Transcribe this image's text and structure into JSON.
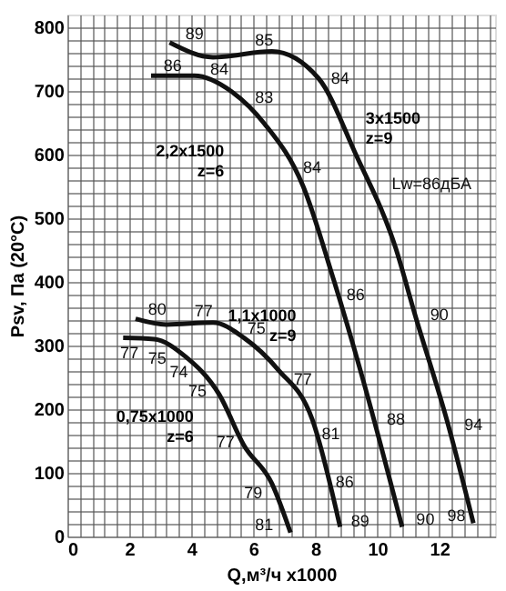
{
  "chart_data": {
    "type": "line",
    "xlabel": "Q,м³/ч x1000",
    "ylabel": "Psv, Па (20°C)",
    "xlim": [
      0,
      13.8
    ],
    "ylim": [
      0,
      820
    ],
    "xticks": [
      0,
      {
        "value": 0.4,
        "label": null
      },
      {
        "value": 0.8,
        "label": null
      },
      {
        "value": 1.2,
        "label": null
      },
      {
        "value": 1.6,
        "label": null
      },
      2,
      {
        "value": 2.4,
        "label": null
      },
      {
        "value": 2.8,
        "label": null
      },
      {
        "value": 3.2,
        "label": null
      },
      {
        "value": 3.6,
        "label": null
      },
      4,
      {
        "value": 4.4,
        "label": null
      },
      {
        "value": 4.8,
        "label": null
      },
      {
        "value": 5.2,
        "label": null
      },
      {
        "value": 5.6,
        "label": null
      },
      6,
      {
        "value": 6.4,
        "label": null
      },
      {
        "value": 6.8,
        "label": null
      },
      {
        "value": 7.2,
        "label": null
      },
      {
        "value": 7.6,
        "label": null
      },
      8,
      {
        "value": 8.4,
        "label": null
      },
      {
        "value": 8.8,
        "label": null
      },
      {
        "value": 9.2,
        "label": null
      },
      {
        "value": 9.6,
        "label": null
      },
      10,
      {
        "value": 10.4,
        "label": null
      },
      {
        "value": 10.8,
        "label": null
      },
      {
        "value": 11.2,
        "label": null
      },
      {
        "value": 11.6,
        "label": null
      },
      12,
      {
        "value": 12.4,
        "label": null
      },
      {
        "value": 12.8,
        "label": null
      },
      {
        "value": 13.2,
        "label": null
      },
      {
        "value": 13.6,
        "label": null
      }
    ],
    "yticks": [
      0,
      {
        "value": 20,
        "label": null
      },
      {
        "value": 40,
        "label": null
      },
      {
        "value": 60,
        "label": null
      },
      {
        "value": 80,
        "label": null
      },
      100,
      {
        "value": 120,
        "label": null
      },
      {
        "value": 140,
        "label": null
      },
      {
        "value": 160,
        "label": null
      },
      {
        "value": 180,
        "label": null
      },
      200,
      {
        "value": 220,
        "label": null
      },
      {
        "value": 240,
        "label": null
      },
      {
        "value": 260,
        "label": null
      },
      {
        "value": 280,
        "label": null
      },
      300,
      {
        "value": 320,
        "label": null
      },
      {
        "value": 340,
        "label": null
      },
      {
        "value": 360,
        "label": null
      },
      {
        "value": 380,
        "label": null
      },
      400,
      {
        "value": 420,
        "label": null
      },
      {
        "value": 440,
        "label": null
      },
      {
        "value": 460,
        "label": null
      },
      {
        "value": 480,
        "label": null
      },
      500,
      {
        "value": 520,
        "label": null
      },
      {
        "value": 540,
        "label": null
      },
      {
        "value": 560,
        "label": null
      },
      {
        "value": 580,
        "label": null
      },
      600,
      {
        "value": 620,
        "label": null
      },
      {
        "value": 640,
        "label": null
      },
      {
        "value": 660,
        "label": null
      },
      {
        "value": 680,
        "label": null
      },
      700,
      {
        "value": 720,
        "label": null
      },
      {
        "value": 740,
        "label": null
      },
      {
        "value": 760,
        "label": null
      },
      {
        "value": 780,
        "label": null
      },
      800
    ],
    "grid": true,
    "marker": "none",
    "line_style": "solid",
    "series": [
      {
        "name": "3x1500\nz=9",
        "color": "#111111",
        "x": [
          3.3,
          4.7,
          6.6,
          8.1,
          9.3,
          10.6,
          11.2,
          12.3,
          13.1
        ],
        "values": [
          776,
          753,
          762,
          720,
          601,
          452,
          351,
          173,
          21
        ]
      },
      {
        "name": "2,2x1500\nz=6",
        "color": "#111111",
        "x": [
          2.7,
          4.1,
          5.3,
          6.35,
          7.6,
          8.6,
          9.5,
          10.8
        ],
        "values": [
          724,
          724,
          699,
          649,
          551,
          402,
          253,
          15
        ]
      },
      {
        "name": "1,1x1000\nz=9",
        "color": "#111111",
        "x": [
          2.2,
          3.2,
          4.7,
          5.7,
          6.8,
          7.9,
          8.8
        ],
        "values": [
          342,
          333,
          336,
          312,
          262,
          184,
          15
        ]
      },
      {
        "name": "0,75x1000\nz=6",
        "color": "#111111",
        "x": [
          1.8,
          2.8,
          3.8,
          4.9,
          5.7,
          6.6,
          7.2
        ],
        "values": [
          312,
          310,
          283,
          223,
          143,
          83,
          6
        ]
      }
    ],
    "legend": false,
    "annotations": [
      "89",
      "85",
      "86",
      "84",
      "84",
      "83",
      "84",
      "Lw=86дБА",
      "86",
      "90",
      "80",
      "77",
      "75",
      "77",
      "75",
      "74",
      "75",
      "77",
      "88",
      "94",
      "81",
      "77",
      "86",
      "79",
      "90",
      "98",
      "89",
      "81"
    ]
  }
}
